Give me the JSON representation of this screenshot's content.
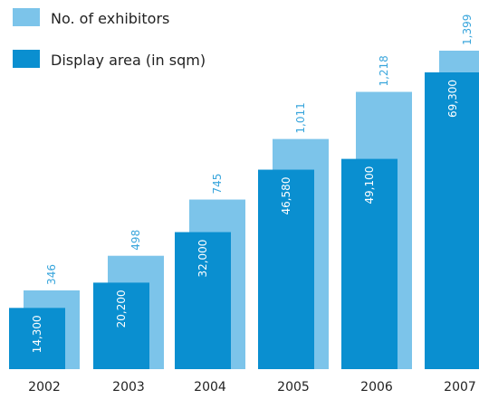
{
  "chart_data": {
    "type": "bar",
    "categories": [
      "2002",
      "2003",
      "2004",
      "2005",
      "2006",
      "2007"
    ],
    "series": [
      {
        "name": "No. of exhibitors",
        "values": [
          346,
          498,
          745,
          1011,
          1218,
          1399
        ],
        "labels": [
          "346",
          "498",
          "745",
          "1,011",
          "1,218",
          "1,399"
        ],
        "color": "#7cc4ea"
      },
      {
        "name": "Display area (in sqm)",
        "values": [
          14300,
          20200,
          32000,
          46580,
          49100,
          69300
        ],
        "labels": [
          "14,300",
          "20,200",
          "32,000",
          "46,580",
          "49,100",
          "69,300"
        ],
        "color": "#0a8fd0"
      }
    ],
    "legend": "top-left",
    "grid": false,
    "xlabel": "",
    "ylabel": ""
  }
}
